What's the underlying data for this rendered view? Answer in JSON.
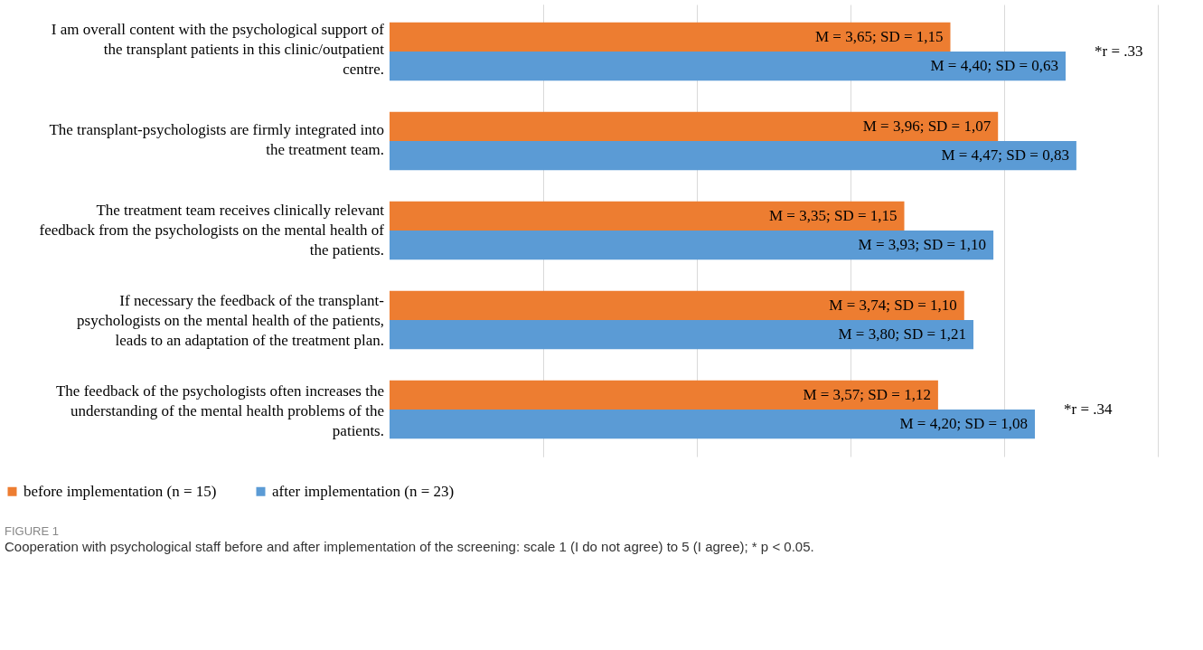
{
  "chart_data": {
    "type": "bar",
    "orientation": "horizontal",
    "categories": [
      "I am overall content with the psychological support of the transplant patients in this clinic/outpatient centre.",
      "The transplant-psychologists are firmly integrated into the treatment team.",
      "The treatment team receives clinically relevant feedback from the psychologists on the mental health of the patients.",
      "If necessary the feedback of the transplant-psychologists on the mental health of the patients, leads to an adaptation of the treatment plan.",
      "The feedback of the psychologists often increases the understanding of the mental health problems of the patients."
    ],
    "series": [
      {
        "name": "before implementation (n = 15)",
        "color": "#ed7d31",
        "values": [
          3.65,
          3.96,
          3.35,
          3.74,
          3.57
        ],
        "value_labels": [
          "M = 3,65; SD = 1,15",
          "M = 3,96; SD = 1,07",
          "M = 3,35; SD = 1,15",
          "M = 3,74; SD = 1,10",
          "M = 3,57; SD = 1,12"
        ]
      },
      {
        "name": "after implementation (n = 23)",
        "color": "#5b9bd5",
        "values": [
          4.4,
          4.47,
          3.93,
          3.8,
          4.2
        ],
        "value_labels": [
          "M = 4,40; SD = 0,63",
          "M = 4,47; SD = 0,83",
          "M = 3,93; SD = 1,10",
          "M = 3,80; SD = 1,21",
          "M = 4,20; SD = 1,08"
        ]
      }
    ],
    "xlim": [
      1,
      5
    ],
    "xticks": [
      {
        "value": 1,
        "label": null
      },
      {
        "value": 2,
        "label": null
      },
      {
        "value": 3,
        "label": null
      },
      {
        "value": 4,
        "label": null
      },
      {
        "value": 5,
        "label": null
      }
    ],
    "grid": "x",
    "legend": "bottom",
    "annotations": [
      {
        "text": "*r = .33",
        "x": 4.4,
        "y": "I am overall content with the psychological support of the transplant patients in this clinic/outpatient centre."
      },
      {
        "text": "*r = .34",
        "x": 4.2,
        "y": "The feedback of the psychologists often increases the understanding of the mental health problems of the patients."
      },
      "FIGURE 1",
      "Cooperation with psychological staff before and after implementation of the screening: scale 1 (I do not agree) to 5 (I agree); * p < 0.05."
    ]
  }
}
